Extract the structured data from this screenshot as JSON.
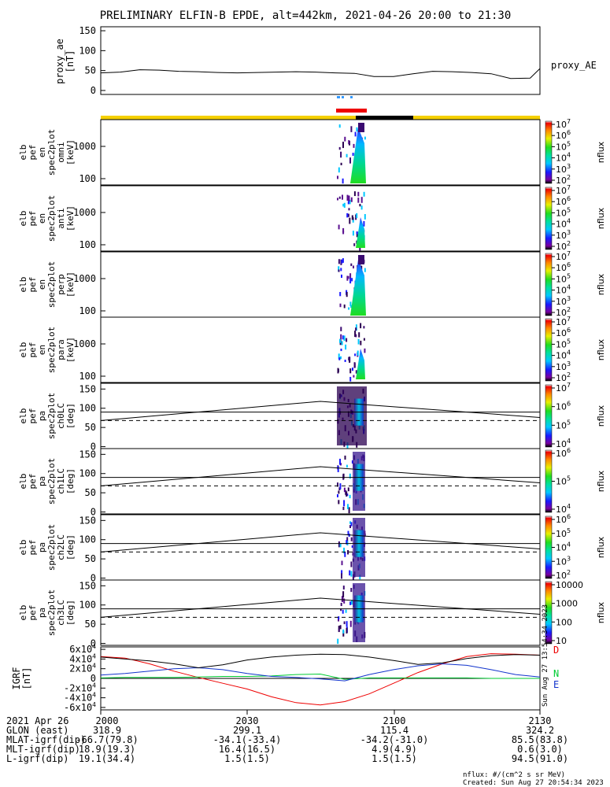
{
  "title": "PRELIMINARY ELFIN-B EPDE, alt=442km, 2021-04-26 20:00 to 21:30",
  "colors": {
    "trace": "#000000",
    "bar_yellow": "#f5d000",
    "bar_black": "#000000",
    "bar_red": "#ee0000",
    "bar_blue": "#3399ff",
    "grf_d": "#ee0000",
    "grf_n": "#00cc33",
    "grf_e": "#1133cc",
    "grf_total": "#000000"
  },
  "chart_data": [
    {
      "type": "line",
      "panel": "proxy_ae",
      "ylabel": [
        "proxy_ae",
        "[nT]"
      ],
      "yticks": [
        "0",
        "50",
        "100",
        "150"
      ],
      "ylim": [
        -10,
        160
      ],
      "series_label": "proxy_AE",
      "x_minutes": [
        0,
        4,
        8,
        12,
        16,
        20,
        24,
        28,
        32,
        36,
        40,
        44,
        48,
        52,
        56,
        60,
        64,
        68,
        72,
        76,
        80,
        84,
        88,
        90
      ],
      "y": [
        44,
        46,
        52,
        51,
        48,
        47,
        45,
        44,
        45,
        46,
        47,
        46,
        44,
        43,
        35,
        35,
        42,
        48,
        47,
        45,
        42,
        30,
        31,
        55
      ]
    },
    {
      "type": "heatmap",
      "panel": "spectrogram",
      "rows": [
        {
          "ylabel": [
            "elb",
            "pef",
            "en",
            "spec2plot",
            "omni",
            "[keV]"
          ],
          "yticks": [
            "100",
            "1000"
          ],
          "cbar": {
            "label": "nflux",
            "ticks": [
              "10^2",
              "10^3",
              "10^4",
              "10^5",
              "10^6",
              "10^7"
            ]
          }
        },
        {
          "ylabel": [
            "elb",
            "pef",
            "en",
            "spec2plot",
            "anti",
            "[keV]"
          ],
          "yticks": [
            "100",
            "1000"
          ],
          "cbar": {
            "label": "nflux",
            "ticks": [
              "10^2",
              "10^3",
              "10^4",
              "10^5",
              "10^6",
              "10^7"
            ]
          }
        },
        {
          "ylabel": [
            "elb",
            "pef",
            "en",
            "spec2plot",
            "perp",
            "[keV]"
          ],
          "yticks": [
            "100",
            "1000"
          ],
          "cbar": {
            "label": "nflux",
            "ticks": [
              "10^2",
              "10^3",
              "10^4",
              "10^5",
              "10^6",
              "10^7"
            ]
          }
        },
        {
          "ylabel": [
            "elb",
            "pef",
            "en",
            "spec2plot",
            "para",
            "[keV]"
          ],
          "yticks": [
            "100",
            "1000"
          ],
          "cbar": {
            "label": "nflux",
            "ticks": [
              "10^2",
              "10^3",
              "10^4",
              "10^5",
              "10^6",
              "10^7"
            ]
          }
        },
        {
          "ylabel": [
            "elb",
            "pef",
            "pa",
            "spec2plot",
            "ch0LC",
            "[deg]"
          ],
          "yticks": [
            "0",
            "50",
            "100",
            "150"
          ],
          "cbar": {
            "label": "nflux",
            "ticks": [
              "10^4",
              "10^5",
              "10^6",
              "10^7"
            ]
          }
        },
        {
          "ylabel": [
            "elb",
            "pef",
            "pa",
            "spec2plot",
            "ch1LC",
            "[deg]"
          ],
          "yticks": [
            "0",
            "50",
            "100",
            "150"
          ],
          "cbar": {
            "label": "nflux",
            "ticks": [
              "10^4",
              "10^5",
              "10^6"
            ]
          }
        },
        {
          "ylabel": [
            "elb",
            "pef",
            "pa",
            "spec2plot",
            "ch2LC",
            "[deg]"
          ],
          "yticks": [
            "0",
            "50",
            "100",
            "150"
          ],
          "cbar": {
            "label": "nflux",
            "ticks": [
              "10^2",
              "10^3",
              "10^4",
              "10^5",
              "10^6"
            ]
          }
        },
        {
          "ylabel": [
            "elb",
            "pef",
            "pa",
            "spec2plot",
            "ch3LC",
            "[deg]"
          ],
          "yticks": [
            "0",
            "50",
            "100",
            "150"
          ],
          "cbar": {
            "label": "nflux",
            "ticks": [
              "10",
              "100",
              "1000",
              "10000"
            ]
          }
        }
      ]
    },
    {
      "type": "line",
      "panel": "igrf",
      "ylabel": [
        "IGRF",
        "[nT]"
      ],
      "yticks": [
        "-6x10^4",
        "-4x10^4",
        "-2x10^4",
        "0",
        "2x10^4",
        "4x10^4",
        "6x10^4"
      ],
      "ylim": [
        -65000,
        65000
      ],
      "legend": [
        "D",
        "N",
        "E"
      ],
      "x_minutes": [
        0,
        5,
        10,
        15,
        20,
        25,
        30,
        35,
        40,
        45,
        50,
        55,
        60,
        65,
        70,
        75,
        80,
        85,
        90
      ],
      "series": [
        {
          "name": "D",
          "values": [
            45000,
            42000,
            30000,
            15000,
            2000,
            -10000,
            -22000,
            -38000,
            -50000,
            -55000,
            -48000,
            -32000,
            -10000,
            12000,
            30000,
            45000,
            51000,
            50000,
            48000
          ]
        },
        {
          "name": "N",
          "values": [
            1000,
            2000,
            2000,
            2000,
            3000,
            4000,
            4000,
            5000,
            8000,
            9000,
            -2000,
            1000,
            1000,
            1000,
            1000,
            1000,
            0,
            0,
            0
          ]
        },
        {
          "name": "E",
          "values": [
            7000,
            10000,
            15000,
            20000,
            22000,
            18000,
            10000,
            4000,
            2000,
            -1000,
            -5000,
            8000,
            18000,
            26000,
            30000,
            27000,
            18000,
            8000,
            3000
          ]
        },
        {
          "name": "total",
          "values": [
            44000,
            40000,
            36000,
            30000,
            22000,
            28000,
            38000,
            44000,
            48000,
            50000,
            49000,
            44000,
            37000,
            29000,
            32000,
            41000,
            47000,
            49000,
            48000
          ]
        }
      ]
    }
  ],
  "time_axis": {
    "rows": [
      {
        "label": "2021 Apr 26",
        "values": [
          "2000",
          "2030",
          "2100",
          "2130"
        ]
      },
      {
        "label": "GLON (east)",
        "values": [
          "318.9",
          "299.1",
          "115.4",
          "324.2"
        ]
      },
      {
        "label": "MLAT-igrf(dip)",
        "values": [
          "-66.7(79.8)",
          "-34.1(-33.4)",
          "-34.2(-31.0)",
          "85.5(83.8)"
        ]
      },
      {
        "label": "MLT-igrf(dip)",
        "values": [
          "18.9(19.3)",
          "16.4(16.5)",
          "4.9(4.9)",
          "0.6(3.0)"
        ]
      },
      {
        "label": "L-igrf(dip)",
        "values": [
          "19.1(34.4)",
          "1.5(1.5)",
          "1.5(1.5)",
          "94.5(91.0)"
        ]
      }
    ]
  },
  "footer": {
    "units": "nflux: #/(cm^2 s sr MeV)",
    "created": "Created: Sun Aug 27 20:54:34 2023",
    "vertical_stamp": "Sun Aug 27 13:54:34 2023"
  }
}
